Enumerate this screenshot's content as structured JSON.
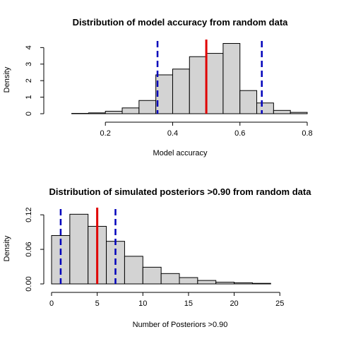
{
  "chart_data": [
    {
      "type": "histogram",
      "title": "Distribution of model accuracy from random data",
      "xlabel": "Model accuracy",
      "ylabel": "Density",
      "xlim": [
        0.04,
        0.8
      ],
      "ylim": [
        0,
        4.4
      ],
      "xticks": [
        0.2,
        0.4,
        0.6,
        0.8
      ],
      "yticks": [
        0,
        1,
        2,
        3,
        4
      ],
      "bin_width": 0.05,
      "bin_starts": [
        0.05,
        0.1,
        0.15,
        0.2,
        0.25,
        0.3,
        0.35,
        0.4,
        0.45,
        0.5,
        0.55,
        0.6,
        0.65,
        0.7,
        0.75
      ],
      "values": [
        0.0,
        0.02,
        0.05,
        0.15,
        0.35,
        0.8,
        2.35,
        2.7,
        3.45,
        3.65,
        4.25,
        1.4,
        0.65,
        0.2,
        0.08
      ],
      "median": 0.5,
      "ci": [
        0.355,
        0.665
      ]
    },
    {
      "type": "histogram",
      "title": "Distribution of simulated posteriors >0.90 from random data",
      "xlabel": "Number of Posteriors >0.90",
      "ylabel": "Density",
      "xlim": [
        0,
        28
      ],
      "ylim": [
        0,
        0.13
      ],
      "xticks": [
        0,
        5,
        10,
        15,
        20,
        25
      ],
      "yticks": [
        0.0,
        0.06,
        0.12
      ],
      "ytick_labels": [
        "0.00",
        "0.06",
        "0.12"
      ],
      "bin_width": 2,
      "bin_starts": [
        0,
        2,
        4,
        6,
        8,
        10,
        12,
        14,
        16,
        18,
        20,
        22
      ],
      "values": [
        0.084,
        0.121,
        0.1,
        0.074,
        0.048,
        0.029,
        0.018,
        0.011,
        0.006,
        0.003,
        0.002,
        0.001
      ],
      "median": 5,
      "ci": [
        1,
        7
      ]
    }
  ]
}
